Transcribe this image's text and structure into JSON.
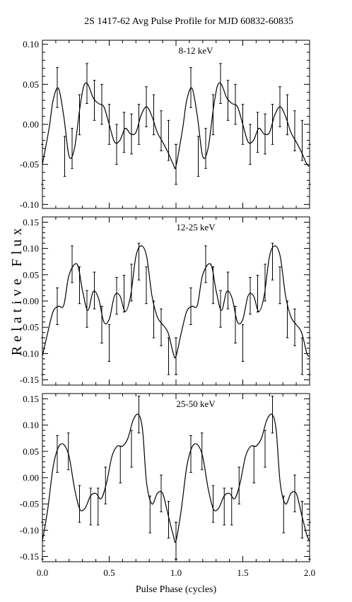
{
  "title": "2S 1417-62 Avg Pulse Profile for MJD 60832-60835",
  "xlabel": "Pulse Phase (cycles)",
  "ylabel": "Relative Flux",
  "chart_data": [
    {
      "type": "line",
      "label": "8-12 keV",
      "xlim": [
        0.0,
        2.0
      ],
      "ylim": [
        -0.105,
        0.105
      ],
      "yticks": [
        "0.10",
        "0.05",
        "0.00",
        "-0.05",
        "-0.10"
      ],
      "ytick_values": [
        0.1,
        0.05,
        0.0,
        -0.05,
        -0.1
      ],
      "xticks": [
        "0.0",
        "0.5",
        "1.0",
        "1.5",
        "2.0"
      ],
      "points": {
        "x": [
          0.0,
          0.1111,
          0.1667,
          0.2222,
          0.2778,
          0.3333,
          0.3889,
          0.4444,
          0.5,
          0.5556,
          0.6111,
          0.6667,
          0.7222,
          0.7778,
          0.8333,
          0.8889,
          0.9444,
          1.0
        ],
        "y": [
          -0.05,
          0.046,
          -0.04,
          -0.03,
          0.012,
          0.051,
          0.03,
          0.025,
          0.0,
          -0.025,
          -0.01,
          -0.012,
          0.0,
          0.022,
          0.012,
          -0.008,
          -0.02,
          -0.05
        ],
        "err": [
          0.025,
          0.025,
          0.025,
          0.025,
          0.025,
          0.025,
          0.025,
          0.025,
          0.025,
          0.025,
          0.025,
          0.025,
          0.025,
          0.025,
          0.025,
          0.025,
          0.025,
          0.025
        ]
      },
      "curve": {
        "x": [
          0.0,
          0.05,
          0.08,
          0.12,
          0.16,
          0.2,
          0.24,
          0.28,
          0.31,
          0.34,
          0.38,
          0.42,
          0.46,
          0.5,
          0.54,
          0.58,
          0.62,
          0.66,
          0.7,
          0.74,
          0.78,
          0.82,
          0.86,
          0.9,
          0.94,
          0.98,
          1.0
        ],
        "y": [
          -0.05,
          -0.005,
          0.03,
          0.045,
          0.01,
          -0.04,
          -0.03,
          0.02,
          0.048,
          0.05,
          0.033,
          0.026,
          0.022,
          0.0,
          -0.022,
          -0.02,
          -0.005,
          -0.012,
          -0.01,
          0.012,
          0.022,
          0.01,
          -0.01,
          -0.022,
          -0.035,
          -0.05,
          -0.052
        ]
      }
    },
    {
      "type": "line",
      "label": "12-25 keV",
      "xlim": [
        0.0,
        2.0
      ],
      "ylim": [
        -0.16,
        0.16
      ],
      "yticks": [
        "0.15",
        "0.10",
        "0.05",
        "0.00",
        "-0.05",
        "-0.10",
        "-0.15"
      ],
      "ytick_values": [
        0.15,
        0.1,
        0.05,
        0.0,
        -0.05,
        -0.1,
        -0.15
      ],
      "xticks": [
        "0.0",
        "0.5",
        "1.0",
        "1.5",
        "2.0"
      ],
      "points": {
        "x": [
          0.0,
          0.1111,
          0.2222,
          0.2778,
          0.3333,
          0.3889,
          0.4444,
          0.5,
          0.5556,
          0.6111,
          0.6667,
          0.7222,
          0.7778,
          0.8333,
          0.8889,
          0.9444,
          1.0
        ],
        "y": [
          -0.105,
          -0.01,
          0.07,
          0.03,
          -0.015,
          0.02,
          -0.045,
          -0.08,
          0.01,
          0.014,
          0.035,
          0.075,
          0.03,
          -0.035,
          -0.05,
          -0.105,
          -0.105
        ],
        "err": [
          0.035,
          0.035,
          0.035,
          0.035,
          0.035,
          0.035,
          0.035,
          0.035,
          0.035,
          0.035,
          0.035,
          0.035,
          0.035,
          0.035,
          0.035,
          0.035,
          0.035
        ]
      },
      "curve": {
        "x": [
          0.0,
          0.04,
          0.08,
          0.12,
          0.16,
          0.2,
          0.26,
          0.3,
          0.34,
          0.38,
          0.42,
          0.46,
          0.5,
          0.54,
          0.58,
          0.62,
          0.66,
          0.7,
          0.74,
          0.78,
          0.82,
          0.86,
          0.9,
          0.94,
          0.98,
          1.0
        ],
        "y": [
          -0.105,
          -0.06,
          -0.02,
          -0.01,
          -0.008,
          0.05,
          0.07,
          0.02,
          -0.018,
          0.018,
          0.005,
          -0.04,
          -0.035,
          0.01,
          0.01,
          -0.02,
          0.01,
          0.085,
          0.105,
          0.085,
          0.01,
          -0.03,
          -0.045,
          -0.06,
          -0.1,
          -0.105
        ]
      }
    },
    {
      "type": "line",
      "label": "25-50 keV",
      "xlim": [
        0.0,
        2.0
      ],
      "ylim": [
        -0.16,
        0.16
      ],
      "yticks": [
        "0.15",
        "0.10",
        "0.05",
        "0.00",
        "-0.05",
        "-0.10",
        "-0.15"
      ],
      "ytick_values": [
        0.15,
        0.1,
        0.05,
        0.0,
        -0.05,
        -0.1,
        -0.15
      ],
      "xticks": [
        "0.0",
        "0.5",
        "1.0",
        "1.5",
        "2.0"
      ],
      "points": {
        "x": [
          0.0,
          0.1111,
          0.1944,
          0.2778,
          0.3611,
          0.4167,
          0.4722,
          0.5833,
          0.6667,
          0.7222,
          0.8056,
          0.8889,
          0.9444,
          1.0
        ],
        "y": [
          -0.12,
          0.045,
          0.05,
          -0.05,
          -0.055,
          -0.055,
          -0.015,
          0.025,
          0.055,
          0.12,
          -0.07,
          -0.03,
          -0.08,
          -0.12
        ],
        "err": [
          0.035,
          0.035,
          0.035,
          0.035,
          0.035,
          0.035,
          0.035,
          0.035,
          0.035,
          0.035,
          0.035,
          0.035,
          0.035,
          0.035
        ]
      },
      "curve": {
        "x": [
          0.0,
          0.04,
          0.08,
          0.12,
          0.16,
          0.2,
          0.24,
          0.28,
          0.32,
          0.36,
          0.4,
          0.44,
          0.48,
          0.52,
          0.56,
          0.6,
          0.64,
          0.68,
          0.72,
          0.75,
          0.78,
          0.82,
          0.86,
          0.9,
          0.94,
          0.98,
          1.0
        ],
        "y": [
          -0.12,
          -0.06,
          0.02,
          0.058,
          0.063,
          0.04,
          -0.02,
          -0.06,
          -0.058,
          -0.035,
          -0.03,
          -0.04,
          -0.01,
          0.04,
          0.06,
          0.06,
          0.075,
          0.11,
          0.12,
          0.09,
          -0.01,
          -0.05,
          -0.03,
          -0.03,
          -0.07,
          -0.11,
          -0.12
        ]
      }
    }
  ]
}
